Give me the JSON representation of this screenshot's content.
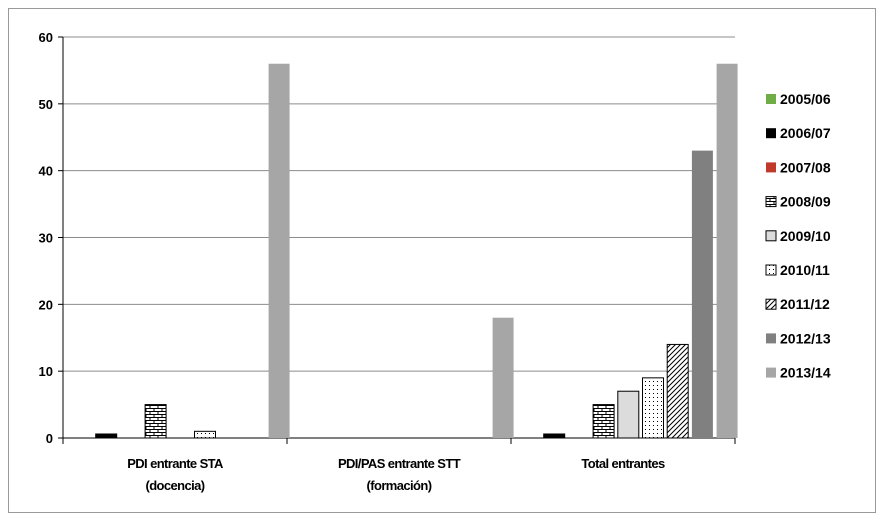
{
  "chart_data": {
    "type": "bar",
    "categories": [
      [
        "PDI entrante  STA",
        "(docencia)"
      ],
      [
        "PDI/PAS entrante  STT",
        "(formación)"
      ],
      [
        "Total entrantes"
      ]
    ],
    "ylim": [
      0,
      60
    ],
    "yticks": [
      0,
      10,
      20,
      30,
      40,
      50,
      60
    ],
    "grid": true,
    "legend_position": "right",
    "series": [
      {
        "name": "2005/06",
        "values": [
          0,
          0,
          0
        ],
        "color": "#70ad47",
        "pattern": "solid"
      },
      {
        "name": "2006/07",
        "values": [
          0.6,
          0,
          0.6
        ],
        "color": "#000000",
        "pattern": "solid"
      },
      {
        "name": "2007/08",
        "values": [
          0,
          0,
          0
        ],
        "color": "#c0392b",
        "pattern": "solid"
      },
      {
        "name": "2008/09",
        "values": [
          5,
          0,
          5
        ],
        "color": "#ffffff",
        "pattern": "brick"
      },
      {
        "name": "2009/10",
        "values": [
          0,
          0,
          7
        ],
        "color": "#dcdcdc",
        "pattern": "solid"
      },
      {
        "name": "2010/11",
        "values": [
          1,
          0,
          9
        ],
        "color": "#ffffff",
        "pattern": "dots"
      },
      {
        "name": "2011/12",
        "values": [
          0,
          0,
          14
        ],
        "color": "#ffffff",
        "pattern": "diagonal"
      },
      {
        "name": "2012/13",
        "values": [
          0,
          0,
          43
        ],
        "color": "#808080",
        "pattern": "solid"
      },
      {
        "name": "2013/14",
        "values": [
          56,
          18,
          56
        ],
        "color": "#a6a6a6",
        "pattern": "solid"
      }
    ]
  }
}
